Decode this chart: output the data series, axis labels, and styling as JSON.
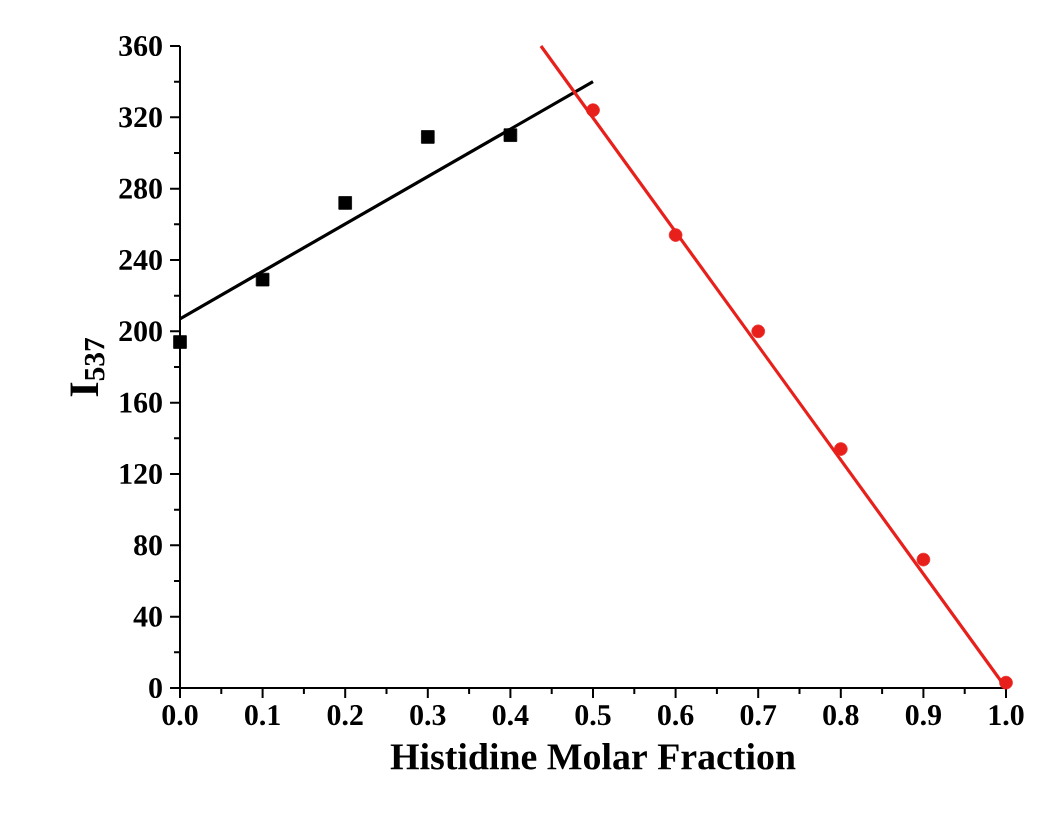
{
  "chart_data": {
    "type": "scatter",
    "xlabel": "Histidine Molar Fraction",
    "ylabel": "I$_{537}$",
    "xlim": [
      0,
      1
    ],
    "ylim": [
      0,
      360
    ],
    "xticks": [
      {
        "value": 0,
        "label": "0.0"
      },
      0.1,
      0.2,
      0.3,
      0.4,
      0.5,
      0.6,
      0.7,
      0.8,
      0.9,
      {
        "value": 1,
        "label": "1.0"
      }
    ],
    "yticks": [
      0,
      40,
      80,
      120,
      160,
      200,
      240,
      280,
      320,
      360
    ],
    "series": [
      {
        "marker": "square",
        "color": "#000000",
        "x": [
          0,
          0.1,
          0.2,
          0.3,
          0.4
        ],
        "values": [
          194,
          229,
          272,
          309,
          310
        ]
      },
      {
        "type": "line",
        "marker": "none",
        "color": "#000000",
        "x": [
          0,
          0.5
        ],
        "values": [
          207,
          340
        ]
      },
      {
        "marker": "circle",
        "color": "#e8201c",
        "x": [
          0.5,
          0.6,
          0.7,
          0.8,
          0.9,
          1.0
        ],
        "values": [
          324,
          254,
          200,
          134,
          72,
          3
        ]
      },
      {
        "type": "line",
        "marker": "none",
        "color": "#e8201c",
        "x": [
          0.437,
          1.0
        ],
        "values": [
          360,
          0
        ]
      }
    ]
  }
}
